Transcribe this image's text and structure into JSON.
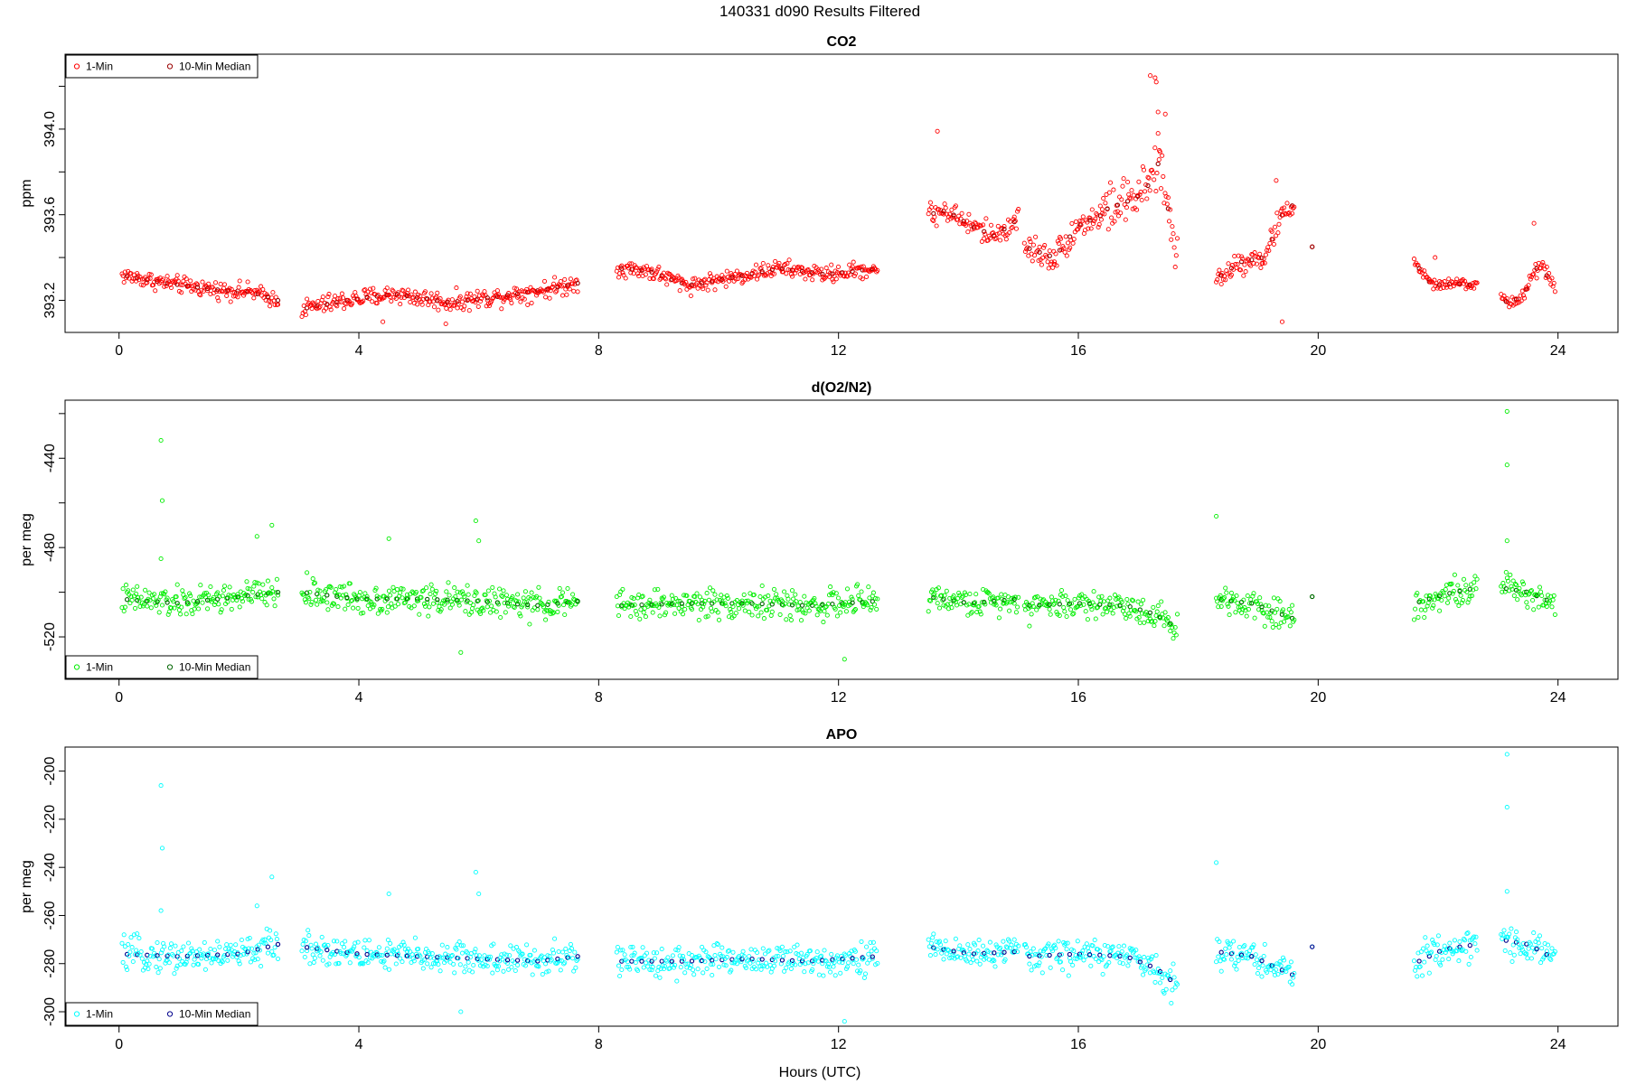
{
  "page": {
    "title": "140331   d090   Results Filtered",
    "xlabel": "Hours (UTC)"
  },
  "chart_data": [
    {
      "type": "scatter",
      "title": "CO2",
      "xlabel": "",
      "ylabel": "ppm",
      "xlim": [
        -0.9,
        25.0
      ],
      "ylim": [
        393.05,
        394.35
      ],
      "xticks": [
        0,
        4,
        8,
        12,
        16,
        20,
        24
      ],
      "yticks": [
        393.2,
        393.6,
        394.0
      ],
      "ytick_labels": [
        "393.2",
        "393.6",
        "394.0"
      ],
      "yminor": [
        393.4,
        393.8,
        394.2
      ],
      "legend_position": "top-left",
      "legend": [
        "1-Min",
        "10-Min Median"
      ],
      "series": [
        {
          "name": "1-Min",
          "color": "#ff0000",
          "marker": "open-circle"
        },
        {
          "name": "10-Min Median",
          "color": "#990000",
          "marker": "open-circle"
        }
      ],
      "segments": [
        {
          "start": 0.05,
          "end": 2.65,
          "values": [
            [
              0.0,
              393.32
            ],
            [
              0.8,
              393.28
            ],
            [
              1.6,
              393.25
            ],
            [
              2.2,
              393.24
            ],
            [
              2.65,
              393.2
            ]
          ],
          "spread": 0.035
        },
        {
          "start": 3.05,
          "end": 7.65,
          "values": [
            [
              3.05,
              393.16
            ],
            [
              3.8,
              393.2
            ],
            [
              4.6,
              393.23
            ],
            [
              5.5,
              393.19
            ],
            [
              6.4,
              393.22
            ],
            [
              7.1,
              393.25
            ],
            [
              7.65,
              393.28
            ]
          ],
          "spread": 0.04
        },
        {
          "start": 8.3,
          "end": 12.65,
          "values": [
            [
              8.3,
              393.35
            ],
            [
              8.8,
              393.34
            ],
            [
              9.5,
              393.27
            ],
            [
              10.3,
              393.31
            ],
            [
              11.0,
              393.35
            ],
            [
              11.8,
              393.32
            ],
            [
              12.65,
              393.35
            ]
          ],
          "spread": 0.035
        },
        {
          "start": 13.5,
          "end": 15.0,
          "values": [
            [
              13.5,
              393.6
            ],
            [
              13.8,
              393.62
            ],
            [
              14.2,
              393.55
            ],
            [
              14.6,
              393.5
            ],
            [
              15.0,
              393.58
            ]
          ],
          "spread": 0.05
        },
        {
          "start": 15.1,
          "end": 16.4,
          "values": [
            [
              15.1,
              393.45
            ],
            [
              15.6,
              393.4
            ],
            [
              16.0,
              393.55
            ],
            [
              16.4,
              393.6
            ]
          ],
          "spread": 0.06
        },
        {
          "start": 16.4,
          "end": 17.65,
          "values": [
            [
              16.4,
              393.62
            ],
            [
              16.8,
              393.66
            ],
            [
              17.1,
              393.7
            ],
            [
              17.35,
              393.85
            ],
            [
              17.65,
              393.4
            ]
          ],
          "spread": 0.1
        },
        {
          "start": 18.3,
          "end": 19.6,
          "values": [
            [
              18.3,
              393.3
            ],
            [
              18.7,
              393.38
            ],
            [
              19.1,
              393.4
            ],
            [
              19.4,
              393.6
            ],
            [
              19.6,
              393.65
            ]
          ],
          "spread": 0.05
        },
        {
          "start": 19.9,
          "end": 19.9,
          "values": [
            [
              19.9,
              393.45
            ]
          ],
          "spread": 0.0
        },
        {
          "start": 21.6,
          "end": 22.65,
          "values": [
            [
              21.6,
              393.38
            ],
            [
              21.9,
              393.27
            ],
            [
              22.3,
              393.28
            ],
            [
              22.65,
              393.27
            ]
          ],
          "spread": 0.02
        },
        {
          "start": 23.05,
          "end": 23.95,
          "values": [
            [
              23.05,
              393.19
            ],
            [
              23.4,
              393.21
            ],
            [
              23.7,
              393.38
            ],
            [
              23.95,
              393.24
            ]
          ],
          "spread": 0.04
        }
      ],
      "outliers": [
        [
          13.65,
          393.99
        ],
        [
          17.2,
          394.25
        ],
        [
          17.28,
          394.24
        ],
        [
          17.3,
          394.22
        ],
        [
          17.33,
          394.08
        ],
        [
          17.45,
          394.07
        ],
        [
          17.35,
          393.9
        ],
        [
          19.3,
          393.76
        ],
        [
          19.4,
          393.1
        ],
        [
          21.95,
          393.4
        ],
        [
          23.6,
          393.56
        ],
        [
          5.45,
          393.09
        ],
        [
          4.4,
          393.1
        ],
        [
          15.6,
          393.38
        ]
      ]
    },
    {
      "type": "scatter",
      "title": "d(O2/N2)",
      "xlabel": "",
      "ylabel": "per meg",
      "xlim": [
        -0.9,
        25.0
      ],
      "ylim": [
        -539,
        -414
      ],
      "xticks": [
        0,
        4,
        8,
        12,
        16,
        20,
        24
      ],
      "yticks": [
        -440,
        -480,
        -520
      ],
      "ytick_labels": [
        "-440",
        "-480",
        "-520"
      ],
      "yminor": [
        -420,
        -460,
        -500
      ],
      "legend_position": "bottom-left",
      "legend": [
        "1-Min",
        "10-Min Median"
      ],
      "series": [
        {
          "name": "1-Min",
          "color": "#00ee00",
          "marker": "open-circle"
        },
        {
          "name": "10-Min Median",
          "color": "#006400",
          "marker": "open-circle"
        }
      ],
      "segments": [
        {
          "start": 0.05,
          "end": 2.65,
          "values": [
            [
              0.0,
              -503
            ],
            [
              1.0,
              -505
            ],
            [
              2.0,
              -502
            ],
            [
              2.65,
              -500
            ]
          ],
          "spread": 6
        },
        {
          "start": 3.05,
          "end": 7.65,
          "values": [
            [
              3.05,
              -500
            ],
            [
              4.0,
              -503
            ],
            [
              5.0,
              -503
            ],
            [
              6.0,
              -504
            ],
            [
              7.0,
              -506
            ],
            [
              7.65,
              -504
            ]
          ],
          "spread": 6
        },
        {
          "start": 8.3,
          "end": 12.65,
          "values": [
            [
              8.3,
              -506
            ],
            [
              9.5,
              -505
            ],
            [
              10.5,
              -505
            ],
            [
              11.5,
              -506
            ],
            [
              12.65,
              -504
            ]
          ],
          "spread": 6
        },
        {
          "start": 13.5,
          "end": 15.0,
          "values": [
            [
              13.5,
              -502
            ],
            [
              14.2,
              -505
            ],
            [
              15.0,
              -503
            ]
          ],
          "spread": 5
        },
        {
          "start": 15.1,
          "end": 17.65,
          "values": [
            [
              15.1,
              -506
            ],
            [
              16.0,
              -505
            ],
            [
              16.8,
              -506
            ],
            [
              17.3,
              -510
            ],
            [
              17.65,
              -516
            ]
          ],
          "spread": 6
        },
        {
          "start": 18.3,
          "end": 19.6,
          "values": [
            [
              18.3,
              -503
            ],
            [
              18.9,
              -505
            ],
            [
              19.6,
              -512
            ]
          ],
          "spread": 6
        },
        {
          "start": 19.9,
          "end": 19.9,
          "values": [
            [
              19.9,
              -502
            ]
          ],
          "spread": 0
        },
        {
          "start": 21.6,
          "end": 22.65,
          "values": [
            [
              21.6,
              -505
            ],
            [
              22.1,
              -501
            ],
            [
              22.65,
              -498
            ]
          ],
          "spread": 6
        },
        {
          "start": 23.05,
          "end": 23.95,
          "values": [
            [
              23.05,
              -498
            ],
            [
              23.5,
              -500
            ],
            [
              23.95,
              -505
            ]
          ],
          "spread": 6
        }
      ],
      "outliers": [
        [
          0.7,
          -432
        ],
        [
          0.72,
          -459
        ],
        [
          0.7,
          -485
        ],
        [
          2.3,
          -475
        ],
        [
          2.55,
          -470
        ],
        [
          4.5,
          -476
        ],
        [
          5.7,
          -527
        ],
        [
          5.95,
          -468
        ],
        [
          6.0,
          -477
        ],
        [
          12.1,
          -530
        ],
        [
          18.3,
          -466
        ],
        [
          23.15,
          -419
        ],
        [
          23.15,
          -443
        ],
        [
          23.15,
          -477
        ]
      ]
    },
    {
      "type": "scatter",
      "title": "APO",
      "xlabel": "",
      "ylabel": "per meg",
      "xlim": [
        -0.9,
        25.0
      ],
      "ylim": [
        -306,
        -190
      ],
      "xticks": [
        0,
        4,
        8,
        12,
        16,
        20,
        24
      ],
      "yticks": [
        -200,
        -220,
        -240,
        -260,
        -280,
        -300
      ],
      "ytick_labels": [
        "-200",
        "-220",
        "-240",
        "-260",
        "-280",
        "-300"
      ],
      "yminor": [],
      "legend_position": "bottom-left",
      "legend": [
        "1-Min",
        "10-Min Median"
      ],
      "series": [
        {
          "name": "1-Min",
          "color": "#00ffff",
          "marker": "open-circle"
        },
        {
          "name": "10-Min Median",
          "color": "#00008b",
          "marker": "open-circle"
        }
      ],
      "segments": [
        {
          "start": 0.05,
          "end": 2.65,
          "values": [
            [
              0.0,
              -276
            ],
            [
              1.0,
              -277
            ],
            [
              2.0,
              -276
            ],
            [
              2.65,
              -272
            ]
          ],
          "spread": 6
        },
        {
          "start": 3.05,
          "end": 7.65,
          "values": [
            [
              3.05,
              -273
            ],
            [
              4.0,
              -276
            ],
            [
              5.0,
              -277
            ],
            [
              6.0,
              -278
            ],
            [
              7.0,
              -279
            ],
            [
              7.65,
              -277
            ]
          ],
          "spread": 6
        },
        {
          "start": 8.3,
          "end": 12.65,
          "values": [
            [
              8.3,
              -279
            ],
            [
              9.5,
              -279
            ],
            [
              10.5,
              -278
            ],
            [
              11.5,
              -279
            ],
            [
              12.65,
              -277
            ]
          ],
          "spread": 6
        },
        {
          "start": 13.5,
          "end": 15.0,
          "values": [
            [
              13.5,
              -273
            ],
            [
              14.2,
              -276
            ],
            [
              15.0,
              -275
            ]
          ],
          "spread": 5
        },
        {
          "start": 15.1,
          "end": 17.65,
          "values": [
            [
              15.1,
              -277
            ],
            [
              16.0,
              -276
            ],
            [
              16.8,
              -277
            ],
            [
              17.3,
              -282
            ],
            [
              17.65,
              -289
            ]
          ],
          "spread": 6
        },
        {
          "start": 18.3,
          "end": 19.6,
          "values": [
            [
              18.3,
              -275
            ],
            [
              18.9,
              -277
            ],
            [
              19.6,
              -285
            ]
          ],
          "spread": 6
        },
        {
          "start": 19.9,
          "end": 19.9,
          "values": [
            [
              19.9,
              -273
            ]
          ],
          "spread": 0
        },
        {
          "start": 21.6,
          "end": 22.65,
          "values": [
            [
              21.6,
              -280
            ],
            [
              22.1,
              -274
            ],
            [
              22.65,
              -272
            ]
          ],
          "spread": 6
        },
        {
          "start": 23.05,
          "end": 23.95,
          "values": [
            [
              23.05,
              -270
            ],
            [
              23.5,
              -272
            ],
            [
              23.95,
              -278
            ]
          ],
          "spread": 6
        }
      ],
      "outliers": [
        [
          0.7,
          -206
        ],
        [
          0.72,
          -232
        ],
        [
          0.7,
          -258
        ],
        [
          2.3,
          -256
        ],
        [
          2.55,
          -244
        ],
        [
          4.5,
          -251
        ],
        [
          5.7,
          -300
        ],
        [
          5.95,
          -242
        ],
        [
          6.0,
          -251
        ],
        [
          12.1,
          -304
        ],
        [
          18.3,
          -238
        ],
        [
          23.15,
          -193
        ],
        [
          23.15,
          -215
        ],
        [
          23.15,
          -250
        ]
      ]
    }
  ]
}
